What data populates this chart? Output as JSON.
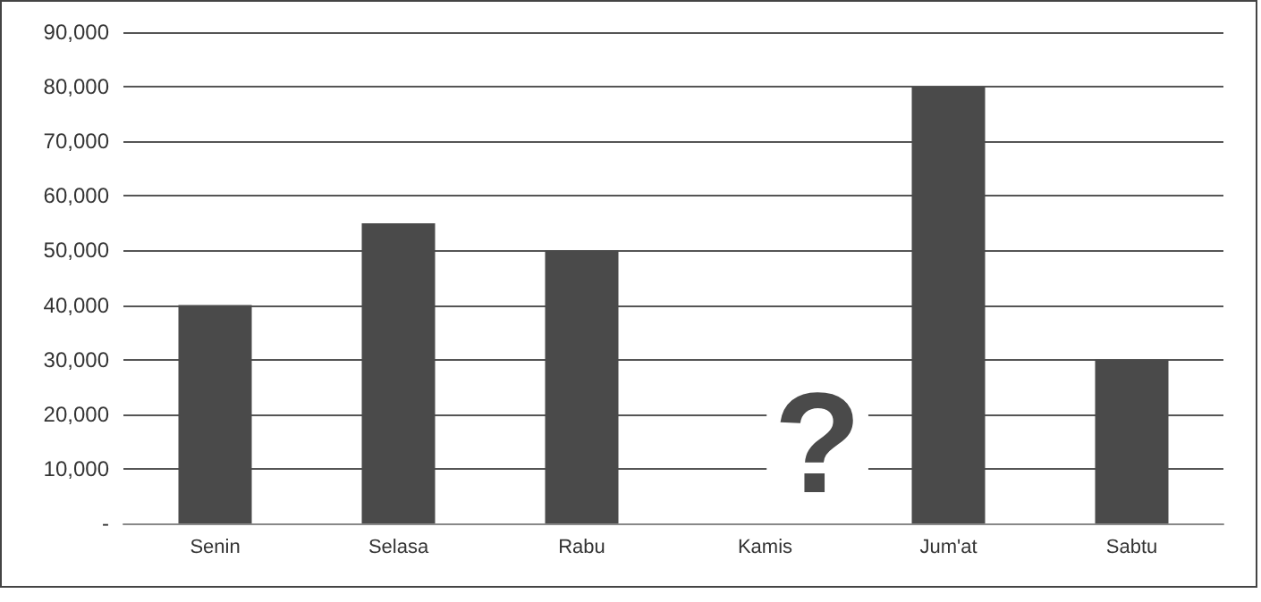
{
  "chart_data": {
    "type": "bar",
    "categories": [
      "Senin",
      "Selasa",
      "Rabu",
      "Kamis",
      "Jum'at",
      "Sabtu"
    ],
    "values": [
      40000,
      55000,
      50000,
      null,
      80000,
      30000
    ],
    "color": "#4a4a4a",
    "ylim": [
      0,
      90000
    ],
    "yticks": [
      {
        "value": 0,
        "label": "-"
      },
      {
        "value": 10000,
        "label": "10,000"
      },
      {
        "value": 20000,
        "label": "20,000"
      },
      {
        "value": 30000,
        "label": "30,000"
      },
      {
        "value": 40000,
        "label": "40,000"
      },
      {
        "value": 50000,
        "label": "50,000"
      },
      {
        "value": 60000,
        "label": "60,000"
      },
      {
        "value": 70000,
        "label": "70,000"
      },
      {
        "value": 80000,
        "label": "80,000"
      },
      {
        "value": 90000,
        "label": "90,000"
      }
    ],
    "grid": "y",
    "annotations": [
      "?"
    ]
  }
}
